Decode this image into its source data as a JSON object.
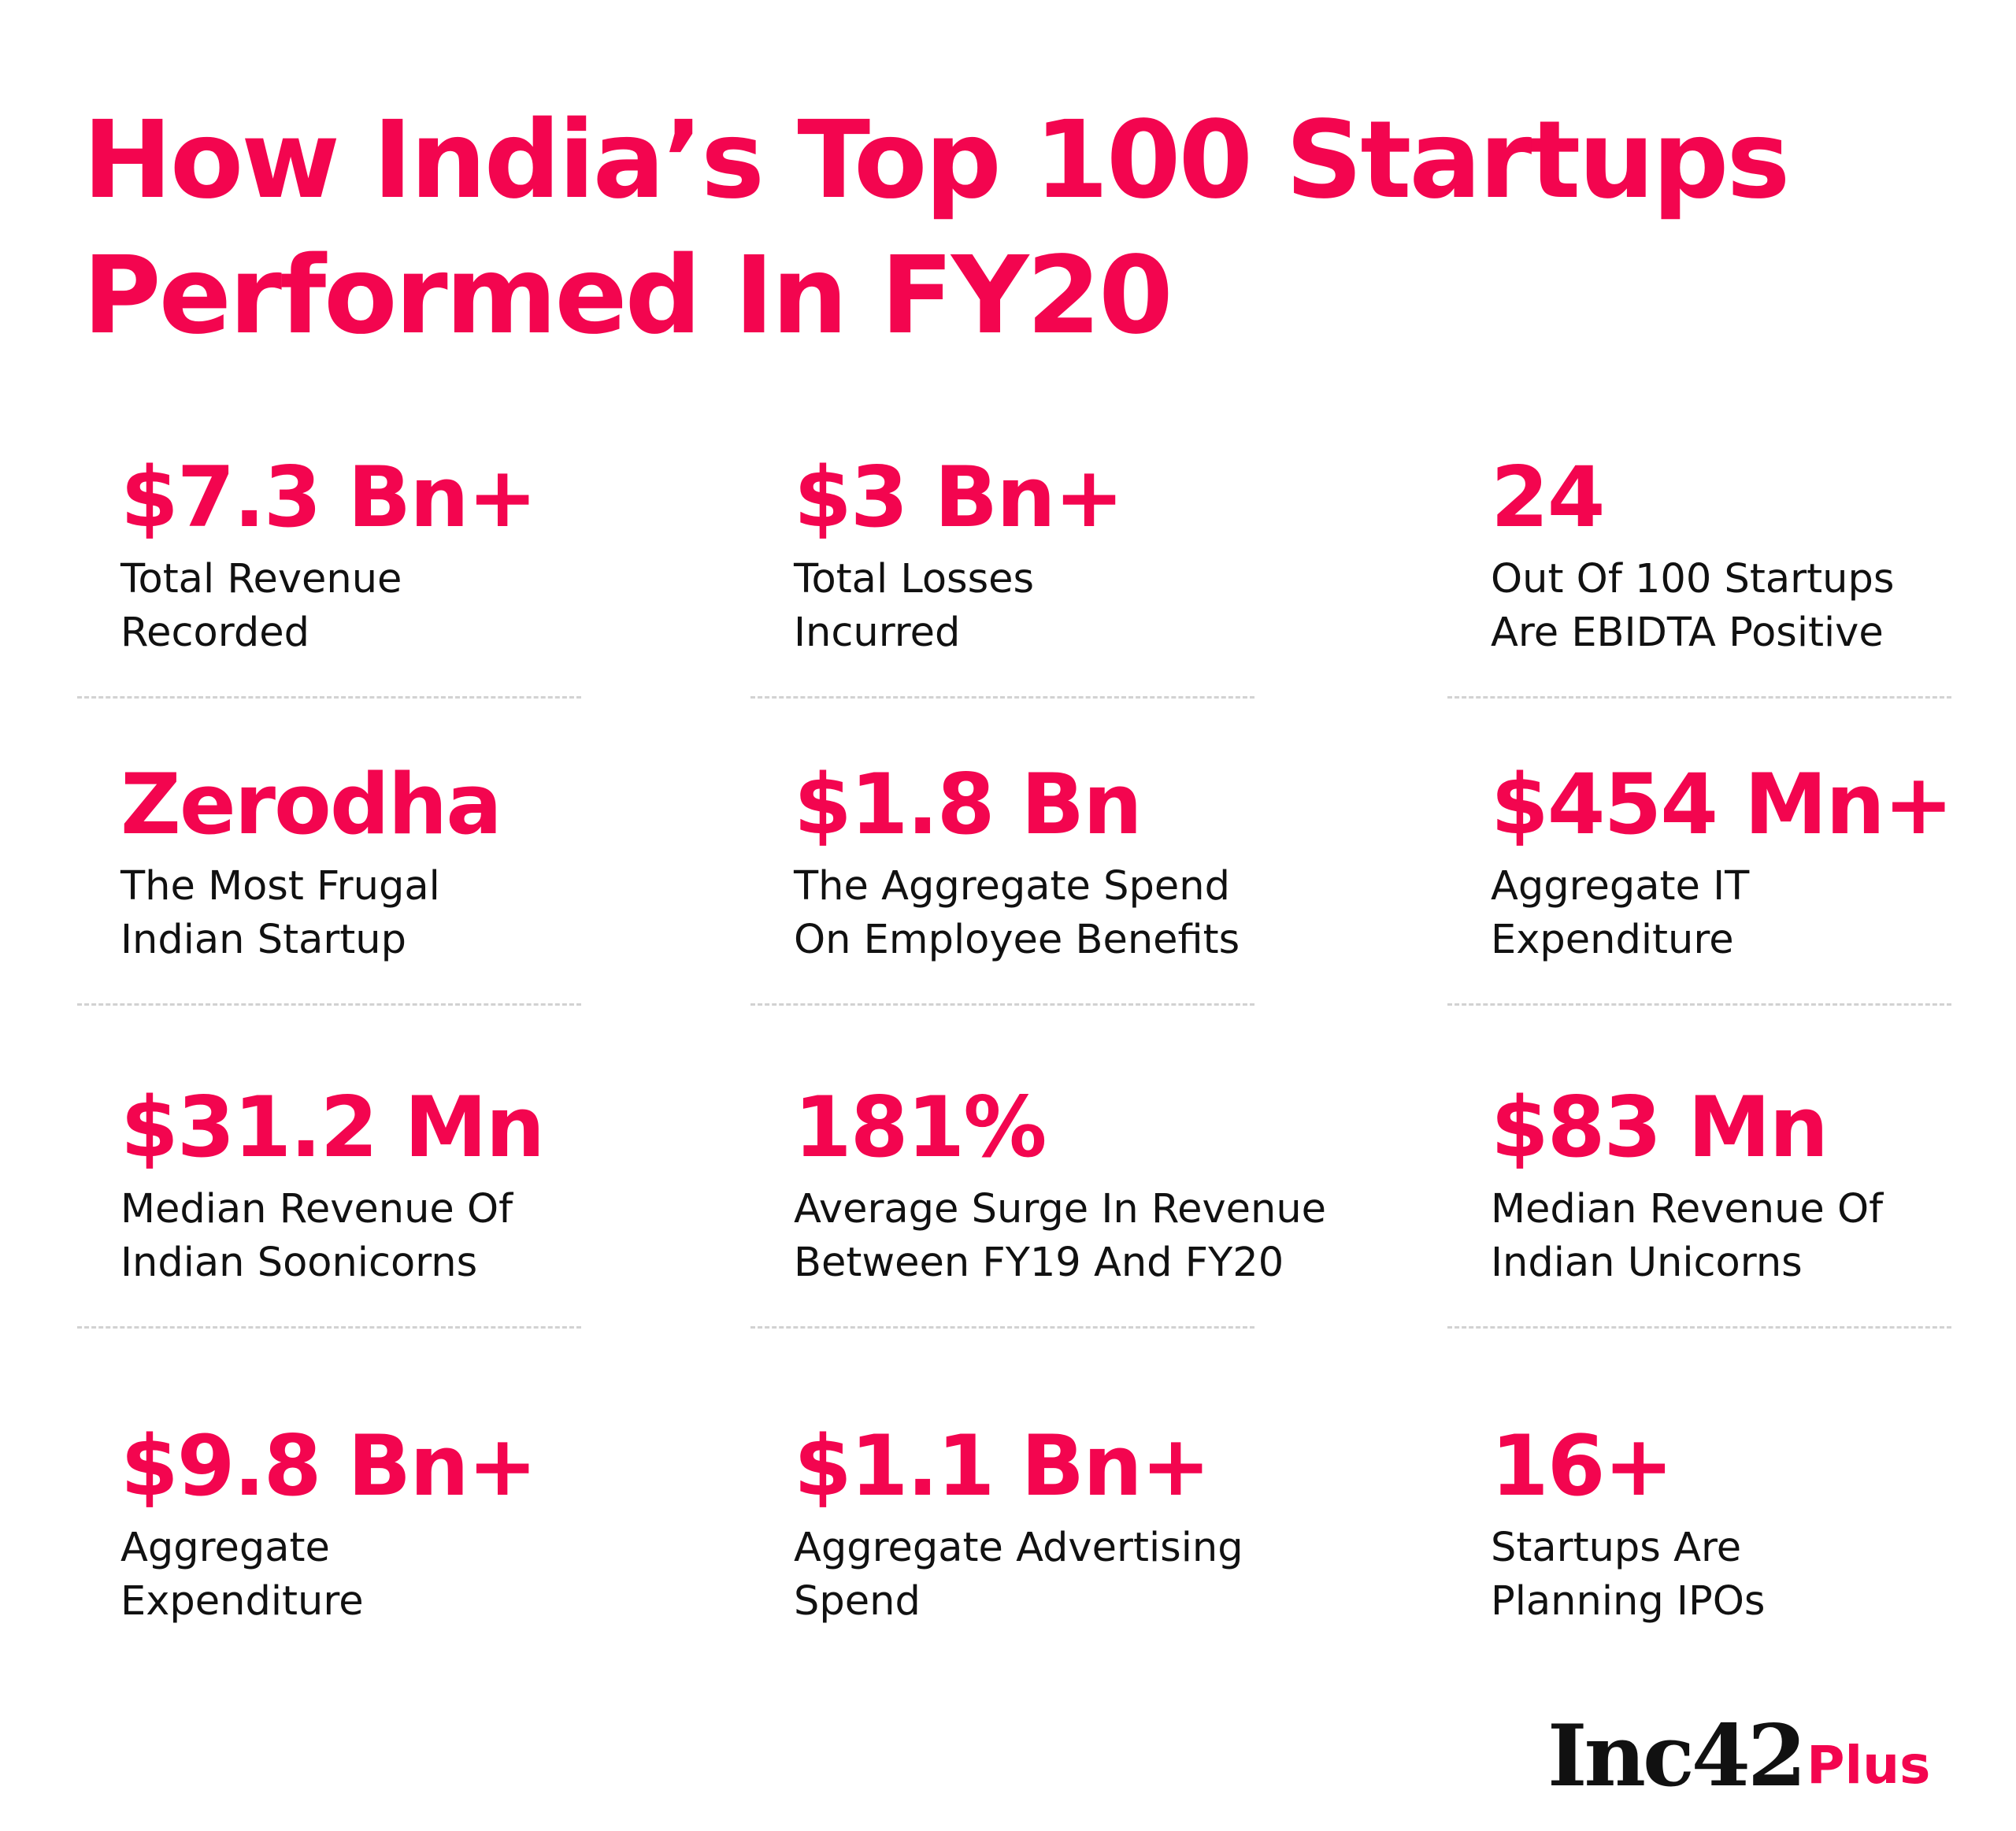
{
  "title": {
    "line1": "How India’s Top 100 Startups",
    "line2": "Performed In FY20"
  },
  "stats": [
    {
      "value": "$7.3 Bn+",
      "label_line1": "Total Revenue",
      "label_line2": "Recorded"
    },
    {
      "value": "$3 Bn+",
      "label_line1": "Total Losses",
      "label_line2": "Incurred"
    },
    {
      "value": "24",
      "label_line1": "Out Of 100 Startups",
      "label_line2": "Are EBIDTA Positive"
    },
    {
      "value": "Zerodha",
      "label_line1": "The Most Frugal",
      "label_line2": "Indian Startup"
    },
    {
      "value": "$1.8 Bn",
      "label_line1": "The Aggregate Spend",
      "label_line2": "On Employee Benefits"
    },
    {
      "value": "$454 Mn+",
      "label_line1": "Aggregate IT",
      "label_line2": "Expenditure"
    },
    {
      "value": "$31.2 Mn",
      "label_line1": "Median Revenue Of",
      "label_line2": "Indian Soonicorns"
    },
    {
      "value": "181%",
      "label_line1": "Average Surge In Revenue",
      "label_line2": "Between FY19 And FY20"
    },
    {
      "value": "$83 Mn",
      "label_line1": "Median Revenue Of",
      "label_line2": "Indian Unicorns"
    },
    {
      "value": "$9.8 Bn+",
      "label_line1": "Aggregate",
      "label_line2": "Expenditure"
    },
    {
      "value": "$1.1 Bn+",
      "label_line1": "Aggregate Advertising",
      "label_line2": "Spend"
    },
    {
      "value": "16+",
      "label_line1": "Startups Are",
      "label_line2": "Planning IPOs"
    }
  ],
  "logo": {
    "main": "Inc42",
    "plus": "Plus"
  },
  "colors": {
    "accent": "#f3054f",
    "text": "#111111",
    "divider": "#d2d2d2"
  }
}
